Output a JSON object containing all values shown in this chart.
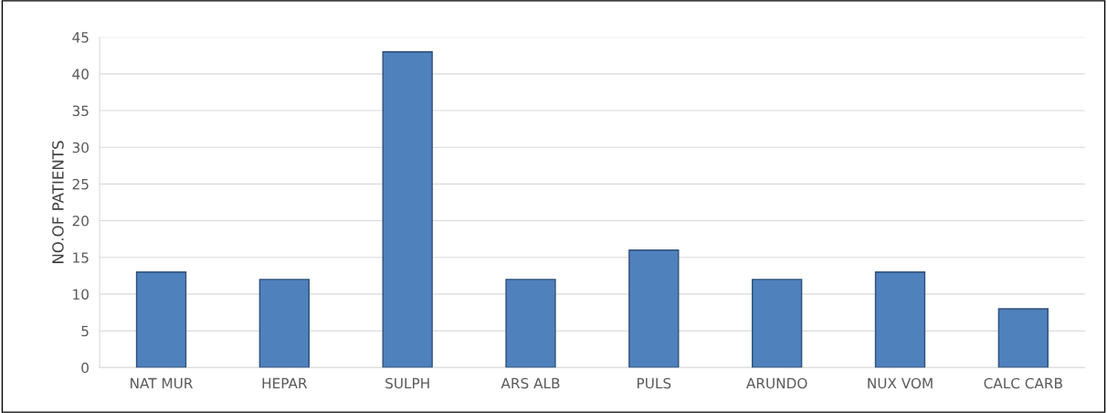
{
  "chart_data": {
    "type": "bar",
    "ylabel": "NO.OF PATIENTS",
    "categories": [
      "NAT MUR",
      "HEPAR",
      "SULPH",
      "ARS ALB",
      "PULS",
      "ARUNDO",
      "NUX VOM",
      "CALC CARB"
    ],
    "values": [
      13,
      12,
      43,
      12,
      16,
      12,
      13,
      8
    ],
    "color": "#4f81bd",
    "ylim": [
      0,
      45
    ],
    "yticks": [
      0,
      5,
      10,
      15,
      20,
      25,
      30,
      35,
      40,
      45
    ],
    "grid": "y"
  }
}
